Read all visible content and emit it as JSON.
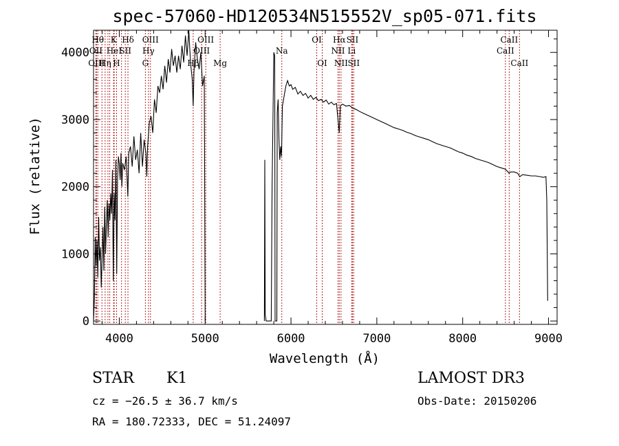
{
  "chart_data": {
    "type": "line",
    "title": "spec-57060-HD120534N515552V_sp05-071.fits",
    "xlabel": "Wavelength (Å)",
    "ylabel": "Flux (relative)",
    "xlim": [
      3700,
      9100
    ],
    "ylim": [
      -50,
      4330
    ],
    "x_ticks": [
      4000,
      5000,
      6000,
      7000,
      8000,
      9000
    ],
    "y_ticks": [
      0,
      1000,
      2000,
      3000,
      4000
    ],
    "series": [
      {
        "points": [
          [
            3700,
            0
          ],
          [
            3710,
            320
          ],
          [
            3720,
            1250
          ],
          [
            3730,
            820
          ],
          [
            3740,
            1200
          ],
          [
            3750,
            650
          ],
          [
            3760,
            1550
          ],
          [
            3770,
            900
          ],
          [
            3780,
            1100
          ],
          [
            3790,
            500
          ],
          [
            3800,
            950
          ],
          [
            3810,
            1400
          ],
          [
            3820,
            750
          ],
          [
            3830,
            1700
          ],
          [
            3840,
            1000
          ],
          [
            3850,
            1450
          ],
          [
            3860,
            1800
          ],
          [
            3870,
            1250
          ],
          [
            3880,
            1750
          ],
          [
            3890,
            1500
          ],
          [
            3900,
            1900
          ],
          [
            3910,
            1600
          ],
          [
            3920,
            2250
          ],
          [
            3930,
            600
          ],
          [
            3940,
            1900
          ],
          [
            3950,
            1500
          ],
          [
            3960,
            2400
          ],
          [
            3970,
            700
          ],
          [
            3980,
            2100
          ],
          [
            3990,
            2450
          ],
          [
            4000,
            2350
          ],
          [
            4010,
            2100
          ],
          [
            4020,
            2500
          ],
          [
            4030,
            2000
          ],
          [
            4040,
            2350
          ],
          [
            4060,
            2250
          ],
          [
            4080,
            2450
          ],
          [
            4100,
            1850
          ],
          [
            4110,
            2500
          ],
          [
            4130,
            2600
          ],
          [
            4150,
            2300
          ],
          [
            4170,
            2750
          ],
          [
            4190,
            2400
          ],
          [
            4210,
            2550
          ],
          [
            4230,
            2200
          ],
          [
            4250,
            2800
          ],
          [
            4270,
            2300
          ],
          [
            4290,
            2700
          ],
          [
            4310,
            2500
          ],
          [
            4320,
            2150
          ],
          [
            4330,
            2600
          ],
          [
            4350,
            2950
          ],
          [
            4370,
            3050
          ],
          [
            4390,
            2800
          ],
          [
            4410,
            3300
          ],
          [
            4430,
            3100
          ],
          [
            4450,
            3500
          ],
          [
            4470,
            3400
          ],
          [
            4490,
            3650
          ],
          [
            4510,
            3450
          ],
          [
            4530,
            3800
          ],
          [
            4550,
            3550
          ],
          [
            4570,
            3900
          ],
          [
            4590,
            3700
          ],
          [
            4610,
            4050
          ],
          [
            4630,
            3800
          ],
          [
            4650,
            3950
          ],
          [
            4670,
            3700
          ],
          [
            4690,
            3950
          ],
          [
            4710,
            3750
          ],
          [
            4730,
            4100
          ],
          [
            4750,
            3850
          ],
          [
            4770,
            4250
          ],
          [
            4790,
            3950
          ],
          [
            4810,
            4330
          ],
          [
            4830,
            3850
          ],
          [
            4850,
            3600
          ],
          [
            4861,
            3200
          ],
          [
            4870,
            3700
          ],
          [
            4890,
            4150
          ],
          [
            4910,
            3900
          ],
          [
            4930,
            3750
          ],
          [
            4950,
            4000
          ],
          [
            4970,
            3500
          ],
          [
            4990,
            3650
          ],
          [
            5000,
            0
          ]
        ]
      },
      {
        "points": [
          [
            5690,
            0
          ],
          [
            5695,
            2400
          ],
          [
            5700,
            100
          ],
          [
            5710,
            0
          ],
          [
            5760,
            0
          ],
          [
            5770,
            0
          ],
          [
            5780,
            2000
          ],
          [
            5790,
            3000
          ],
          [
            5800,
            4000
          ],
          [
            5810,
            3950
          ],
          [
            5815,
            0
          ],
          [
            5835,
            0
          ],
          [
            5840,
            3100
          ],
          [
            5850,
            3300
          ],
          [
            5860,
            2700
          ],
          [
            5870,
            2400
          ],
          [
            5880,
            2600
          ],
          [
            5890,
            2450
          ],
          [
            5900,
            3200
          ],
          [
            5920,
            3350
          ],
          [
            5940,
            3500
          ],
          [
            5960,
            3580
          ],
          [
            5980,
            3500
          ],
          [
            6000,
            3520
          ],
          [
            6020,
            3450
          ],
          [
            6050,
            3480
          ],
          [
            6080,
            3380
          ],
          [
            6110,
            3420
          ],
          [
            6140,
            3360
          ],
          [
            6170,
            3390
          ],
          [
            6200,
            3320
          ],
          [
            6230,
            3360
          ],
          [
            6260,
            3300
          ],
          [
            6290,
            3330
          ],
          [
            6320,
            3280
          ],
          [
            6350,
            3300
          ],
          [
            6380,
            3260
          ],
          [
            6410,
            3290
          ],
          [
            6440,
            3230
          ],
          [
            6470,
            3260
          ],
          [
            6500,
            3220
          ],
          [
            6530,
            3240
          ],
          [
            6563,
            2800
          ],
          [
            6575,
            3200
          ],
          [
            6600,
            3230
          ],
          [
            6640,
            3200
          ],
          [
            6680,
            3210
          ],
          [
            6720,
            3170
          ],
          [
            6760,
            3150
          ],
          [
            6800,
            3120
          ],
          [
            6850,
            3090
          ],
          [
            6900,
            3060
          ],
          [
            6950,
            3030
          ],
          [
            7000,
            3000
          ],
          [
            7050,
            2970
          ],
          [
            7100,
            2940
          ],
          [
            7150,
            2910
          ],
          [
            7200,
            2880
          ],
          [
            7250,
            2860
          ],
          [
            7300,
            2840
          ],
          [
            7350,
            2810
          ],
          [
            7400,
            2790
          ],
          [
            7450,
            2760
          ],
          [
            7500,
            2740
          ],
          [
            7550,
            2720
          ],
          [
            7600,
            2700
          ],
          [
            7650,
            2670
          ],
          [
            7700,
            2640
          ],
          [
            7750,
            2620
          ],
          [
            7800,
            2600
          ],
          [
            7850,
            2580
          ],
          [
            7900,
            2550
          ],
          [
            7950,
            2520
          ],
          [
            8000,
            2500
          ],
          [
            8050,
            2470
          ],
          [
            8100,
            2450
          ],
          [
            8150,
            2420
          ],
          [
            8200,
            2400
          ],
          [
            8250,
            2380
          ],
          [
            8300,
            2360
          ],
          [
            8350,
            2330
          ],
          [
            8400,
            2300
          ],
          [
            8450,
            2280
          ],
          [
            8500,
            2260
          ],
          [
            8540,
            2200
          ],
          [
            8560,
            2220
          ],
          [
            8600,
            2220
          ],
          [
            8640,
            2200
          ],
          [
            8665,
            2150
          ],
          [
            8700,
            2180
          ],
          [
            8750,
            2170
          ],
          [
            8800,
            2160
          ],
          [
            8850,
            2160
          ],
          [
            8900,
            2150
          ],
          [
            8940,
            2140
          ],
          [
            8970,
            2150
          ],
          [
            8980,
            1800
          ],
          [
            8990,
            300
          ]
        ]
      }
    ],
    "line_marks": [
      {
        "x": 3750,
        "label": "Hθ",
        "row": 1
      },
      {
        "x": 3727,
        "label": "OII",
        "row": 2
      },
      {
        "x": 3734,
        "label": "OIII",
        "row": 3
      },
      {
        "x": 3798,
        "label": "",
        "row": 0
      },
      {
        "x": 3835,
        "label": "Hη",
        "row": 3
      },
      {
        "x": 3868,
        "label": "",
        "row": 0
      },
      {
        "x": 3889,
        "label": "",
        "row": 0
      },
      {
        "x": 3934,
        "label": "K",
        "row": 1
      },
      {
        "x": 3940,
        "label": "HeI",
        "row": 2
      },
      {
        "x": 3968,
        "label": "H",
        "row": 3
      },
      {
        "x": 4026,
        "label": "",
        "row": 0
      },
      {
        "x": 4070,
        "label": "SII",
        "row": 2
      },
      {
        "x": 4101,
        "label": "Hδ",
        "row": 1
      },
      {
        "x": 4304,
        "label": "G",
        "row": 3
      },
      {
        "x": 4340,
        "label": "Hγ",
        "row": 2
      },
      {
        "x": 4363,
        "label": "OIII",
        "row": 1
      },
      {
        "x": 4861,
        "label": "Hβ",
        "row": 3
      },
      {
        "x": 4959,
        "label": "OIII",
        "row": 2
      },
      {
        "x": 5007,
        "label": "OIII",
        "row": 1
      },
      {
        "x": 5175,
        "label": "Mg",
        "row": 3
      },
      {
        "x": 5893,
        "label": "Na",
        "row": 2
      },
      {
        "x": 6300,
        "label": "OI",
        "row": 1
      },
      {
        "x": 6364,
        "label": "OI",
        "row": 3
      },
      {
        "x": 6548,
        "label": "NII",
        "row": 2
      },
      {
        "x": 6563,
        "label": "Hα",
        "row": 1
      },
      {
        "x": 6583,
        "label": "NII",
        "row": 3
      },
      {
        "x": 6707,
        "label": "Li",
        "row": 2
      },
      {
        "x": 6716,
        "label": "SII",
        "row": 1
      },
      {
        "x": 6731,
        "label": "SII",
        "row": 3
      },
      {
        "x": 8498,
        "label": "CaII",
        "row": 2
      },
      {
        "x": 8542,
        "label": "CaII",
        "row": 1
      },
      {
        "x": 8662,
        "label": "CaII",
        "row": 3
      }
    ]
  },
  "info": {
    "object_class": "STAR",
    "subclass": "K1",
    "survey": "LAMOST DR3",
    "cz": "cz = −26.5 ± 36.7 km/s",
    "obs_date": "Obs-Date: 20150206",
    "coords": "RA = 180.72333, DEC =  51.24097"
  }
}
